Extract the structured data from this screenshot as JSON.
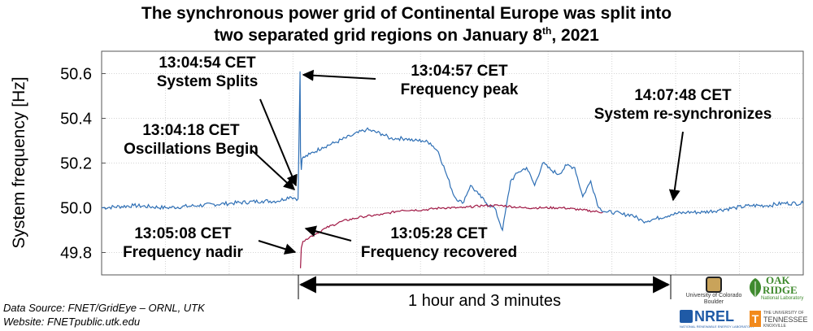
{
  "title": {
    "line1": "The synchronous power grid of Continental Europe was split into",
    "line2_main": "two separated grid regions on January 8",
    "line2_sup": "th",
    "line2_end": ", 2021"
  },
  "chart_data": {
    "type": "line",
    "title": "The synchronous power grid of Continental Europe was split into two separated grid regions on January 8th, 2021",
    "ylabel": "System frequency [Hz]",
    "xlabel": "",
    "ylim": [
      49.7,
      50.7
    ],
    "yticks": [
      "49.8",
      "50.0",
      "50.2",
      "50.4",
      "50.6"
    ],
    "grid": true,
    "x_unit": "minutes after 12:15 CET (approx.)",
    "series": [
      {
        "color": "#2e6fb5",
        "x": [
          0,
          8,
          16,
          24,
          32,
          40,
          44,
          47,
          49,
          49.5,
          49.6,
          49.8,
          50,
          52,
          55,
          58,
          62,
          66,
          70,
          72,
          74,
          76,
          78,
          80,
          82,
          84,
          86,
          88,
          90,
          92,
          94,
          96,
          98,
          100,
          102,
          104,
          106,
          108,
          110,
          112,
          114,
          116,
          118,
          120,
          122,
          124,
          126,
          128,
          130,
          132,
          135,
          138,
          142,
          146,
          150,
          154,
          158,
          162,
          166,
          170,
          175
        ],
        "y": [
          50.0,
          50.01,
          50.0,
          50.01,
          50.02,
          50.03,
          50.03,
          50.05,
          50.04,
          50.61,
          50.25,
          50.17,
          50.22,
          50.24,
          50.27,
          50.29,
          50.32,
          50.35,
          50.33,
          50.31,
          50.31,
          50.31,
          50.3,
          50.3,
          50.29,
          50.25,
          50.15,
          50.05,
          50.02,
          50.1,
          50.06,
          50.02,
          50.0,
          49.9,
          50.12,
          50.16,
          50.18,
          50.1,
          50.2,
          50.17,
          50.15,
          50.19,
          50.18,
          50.05,
          50.12,
          50.0,
          49.98,
          49.98,
          49.97,
          49.97,
          49.94,
          49.95,
          49.97,
          49.98,
          49.98,
          49.99,
          50.0,
          50.01,
          50.01,
          50.02,
          50.02
        ]
      },
      {
        "color": "#a01845",
        "x": [
          49.6,
          49.8,
          50.2,
          51,
          53,
          56,
          60,
          65,
          70,
          75,
          80,
          85,
          90,
          95,
          100,
          105,
          110,
          115,
          120,
          125
        ],
        "y": [
          49.73,
          49.82,
          49.85,
          49.86,
          49.88,
          49.91,
          49.94,
          49.96,
          49.97,
          49.99,
          49.99,
          50.0,
          50.0,
          50.01,
          50.01,
          50.0,
          50.0,
          50.0,
          49.99,
          49.98
        ]
      }
    ],
    "annotations": [
      {
        "time": "13:04:54 CET",
        "label": "System Splits"
      },
      {
        "time": "13:04:57 CET",
        "label": "Frequency peak"
      },
      {
        "time": "13:04:18 CET",
        "label": "Oscillations Begin"
      },
      {
        "time": "14:07:48 CET",
        "label": "System re-synchronizes"
      },
      {
        "time": "13:05:08 CET",
        "label": "Frequency nadir"
      },
      {
        "time": "13:05:28 CET",
        "label": "Frequency recovered"
      }
    ],
    "duration_label": "1 hour and 3 minutes"
  },
  "source": {
    "line1": "Data Source: FNET/GridEye – ORNL, UTK",
    "line2": "Website: FNETpublic.utk.edu"
  },
  "logos": {
    "cu_line1": "University of Colorado",
    "cu_line2": "Boulder",
    "oak_line1": "OAK",
    "oak_line2": "RIDGE",
    "oak_line3": "National Laboratory",
    "nrel": "NREL",
    "nrel_sub": "NATIONAL RENEWABLE ENERGY LABORATORY",
    "ut_line1": "THE UNIVERSITY OF",
    "ut_line2": "TENNESSEE",
    "ut_line3": "KNOXVILLE"
  }
}
